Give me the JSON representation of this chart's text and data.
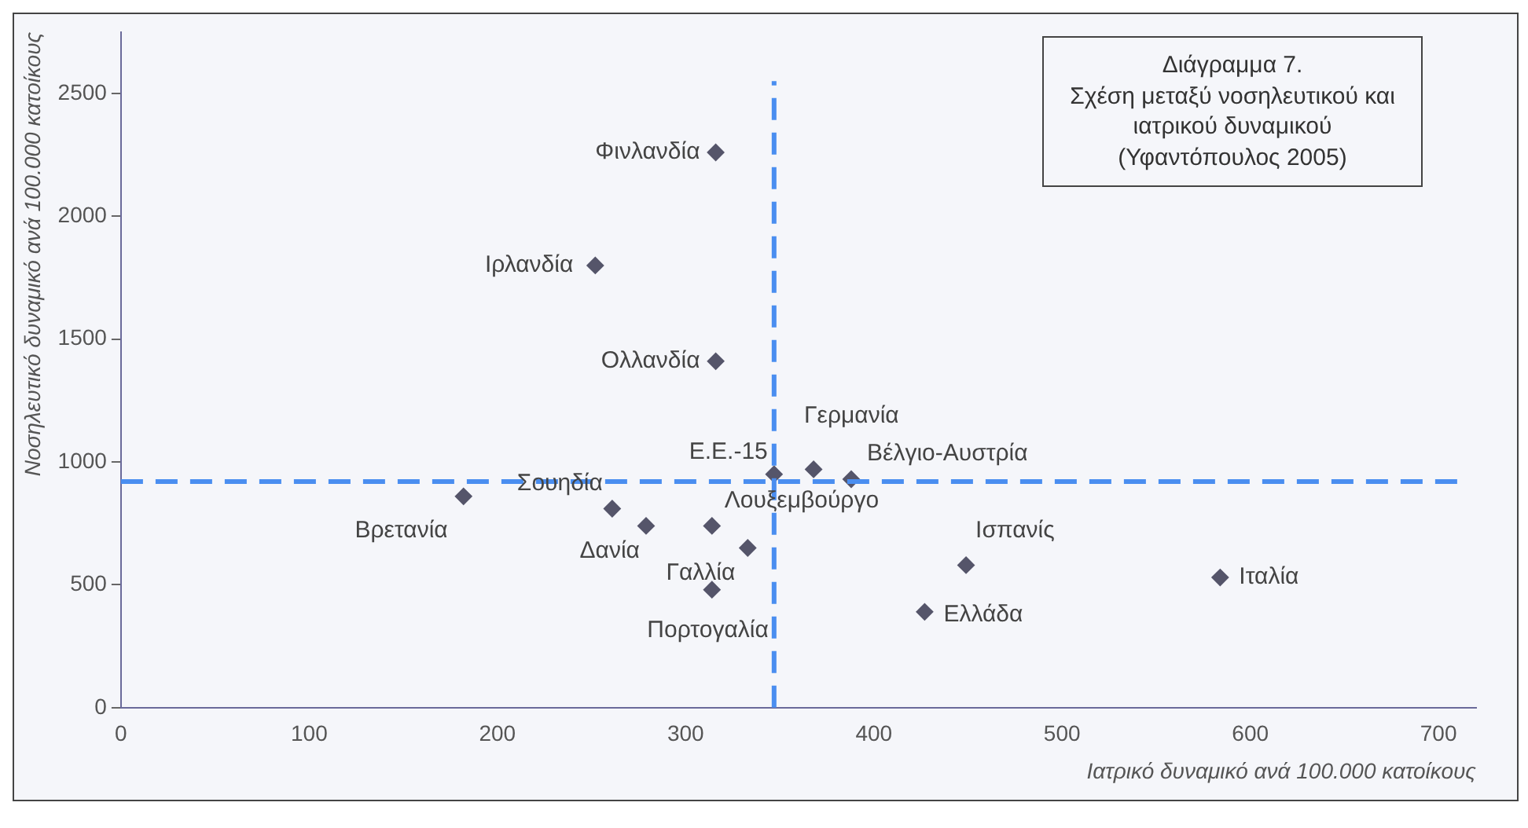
{
  "chart_data": {
    "type": "scatter",
    "title": "Διάγραμμα 7.",
    "subtitle": "Σχέση μεταξύ νοσηλευτικού και ιατρικού δυναμικού (Υφαντόπουλος 2005)",
    "xlabel": "Ιατρικό δυναμικό ανά 100.000 κατοίκους",
    "ylabel": "Νοσηλευτικό δυναμικό ανά 100.000 κατοίκους",
    "xlim": [
      0,
      720
    ],
    "xticks": [
      0,
      100,
      200,
      300,
      400,
      500,
      600,
      700
    ],
    "ylim": [
      0,
      2750
    ],
    "yticks": [
      0,
      500,
      1000,
      1500,
      2000,
      2500
    ],
    "grid": false,
    "legend": false,
    "marker": "diamond",
    "series": [
      {
        "color": "#55556a",
        "x": [
          316,
          252,
          316,
          182,
          261,
          279,
          314,
          314,
          347,
          368,
          388,
          333,
          449,
          427,
          584
        ],
        "values": [
          2260,
          1800,
          1410,
          860,
          810,
          740,
          740,
          480,
          950,
          970,
          930,
          650,
          580,
          390,
          530
        ]
      }
    ],
    "annotations": [
      {
        "text": "Φινλανδία",
        "x": 316,
        "y": 2260
      },
      {
        "text": "Ιρλανδία",
        "x": 252,
        "y": 1800
      },
      {
        "text": "Ολλανδία",
        "x": 316,
        "y": 1410
      },
      {
        "text": "Βρετανία",
        "x": 182,
        "y": 860
      },
      {
        "text": "Σουηδία",
        "x": 261,
        "y": 810
      },
      {
        "text": "Δανία",
        "x": 279,
        "y": 740
      },
      {
        "text": "Λουξεμβούργο",
        "x": 314,
        "y": 740
      },
      {
        "text": "Πορτογαλία",
        "x": 314,
        "y": 480
      },
      {
        "text": "Ε.Ε.-15",
        "x": 347,
        "y": 950
      },
      {
        "text": "Γερμανία",
        "x": 368,
        "y": 970
      },
      {
        "text": "Βέλγιο-Αυστρία",
        "x": 388,
        "y": 930
      },
      {
        "text": "Γαλλία",
        "x": 333,
        "y": 650
      },
      {
        "text": "Ισπανίς",
        "x": 449,
        "y": 580
      },
      {
        "text": "Ελλάδα",
        "x": 427,
        "y": 390
      },
      {
        "text": "Ιταλία",
        "x": 584,
        "y": 530
      }
    ],
    "ref_lines": [
      {
        "axis": "x",
        "value": 347,
        "color": "#4a8ef0",
        "line_style": "dashed"
      },
      {
        "axis": "y",
        "value": 920,
        "color": "#4a8ef0",
        "line_style": "dashed"
      }
    ]
  }
}
